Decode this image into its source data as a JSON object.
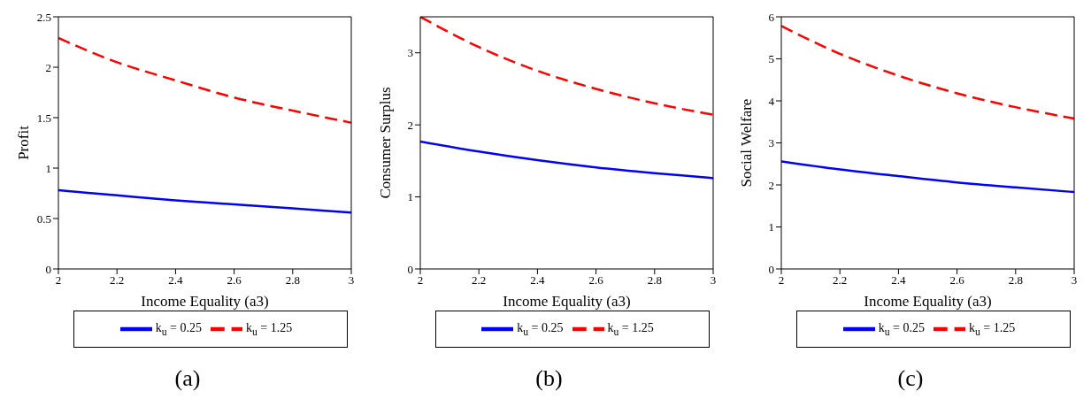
{
  "chart_data": [
    {
      "type": "line",
      "xlabel": "Income Equality (a3)",
      "ylabel": "Profit",
      "x": [
        2,
        2.2,
        2.4,
        2.6,
        2.8,
        3
      ],
      "xlim": [
        2,
        3
      ],
      "xticks": [
        2,
        2.2,
        2.4,
        2.6,
        2.8,
        3
      ],
      "ylim": [
        0,
        2.5
      ],
      "yticks": [
        0,
        0.5,
        1,
        1.5,
        2,
        2.5
      ],
      "legend": "bottom",
      "grid": false,
      "marker": "none",
      "annotations": [
        "(a)"
      ],
      "series": [
        {
          "name": "k$_{u}$ = 0.25",
          "color": "#0000ff",
          "line_style": "solid",
          "values": [
            0.78,
            0.73,
            0.68,
            0.64,
            0.6,
            0.56
          ]
        },
        {
          "name": "k$_{u}$ = 1.25",
          "color": "#ff0000",
          "line_style": "dashed",
          "values": [
            2.29,
            2.05,
            1.87,
            1.7,
            1.57,
            1.45
          ]
        }
      ]
    },
    {
      "type": "line",
      "xlabel": "Income Equality (a3)",
      "ylabel": "Consumer Surplus",
      "x": [
        2,
        2.2,
        2.4,
        2.6,
        2.8,
        3
      ],
      "xlim": [
        2,
        3
      ],
      "xticks": [
        2,
        2.2,
        2.4,
        2.6,
        2.8,
        3
      ],
      "ylim": [
        0,
        3.5
      ],
      "yticks": [
        0,
        1,
        2,
        3
      ],
      "legend": "bottom",
      "grid": false,
      "marker": "none",
      "annotations": [
        "(b)"
      ],
      "series": [
        {
          "name": "k$_{u}$ = 0.25",
          "color": "#0000ff",
          "line_style": "solid",
          "values": [
            1.77,
            1.63,
            1.51,
            1.41,
            1.33,
            1.26
          ]
        },
        {
          "name": "k$_{u}$ = 1.25",
          "color": "#ff0000",
          "line_style": "dashed",
          "values": [
            3.5,
            3.08,
            2.75,
            2.5,
            2.3,
            2.14
          ]
        }
      ]
    },
    {
      "type": "line",
      "xlabel": "Income Equality (a3)",
      "ylabel": "Social Welfare",
      "x": [
        2,
        2.2,
        2.4,
        2.6,
        2.8,
        3
      ],
      "xlim": [
        2,
        3
      ],
      "xticks": [
        2,
        2.2,
        2.4,
        2.6,
        2.8,
        3
      ],
      "ylim": [
        0,
        6
      ],
      "yticks": [
        0,
        1,
        2,
        3,
        4,
        5,
        6
      ],
      "legend": "bottom",
      "grid": false,
      "marker": "none",
      "annotations": [
        "(c)"
      ],
      "series": [
        {
          "name": "k$_{u}$ = 0.25",
          "color": "#0000ff",
          "line_style": "solid",
          "values": [
            2.56,
            2.37,
            2.21,
            2.06,
            1.94,
            1.83
          ]
        },
        {
          "name": "k$_{u}$ = 1.25",
          "color": "#ff0000",
          "line_style": "dashed",
          "values": [
            5.78,
            5.12,
            4.6,
            4.18,
            3.85,
            3.58
          ]
        }
      ]
    }
  ]
}
